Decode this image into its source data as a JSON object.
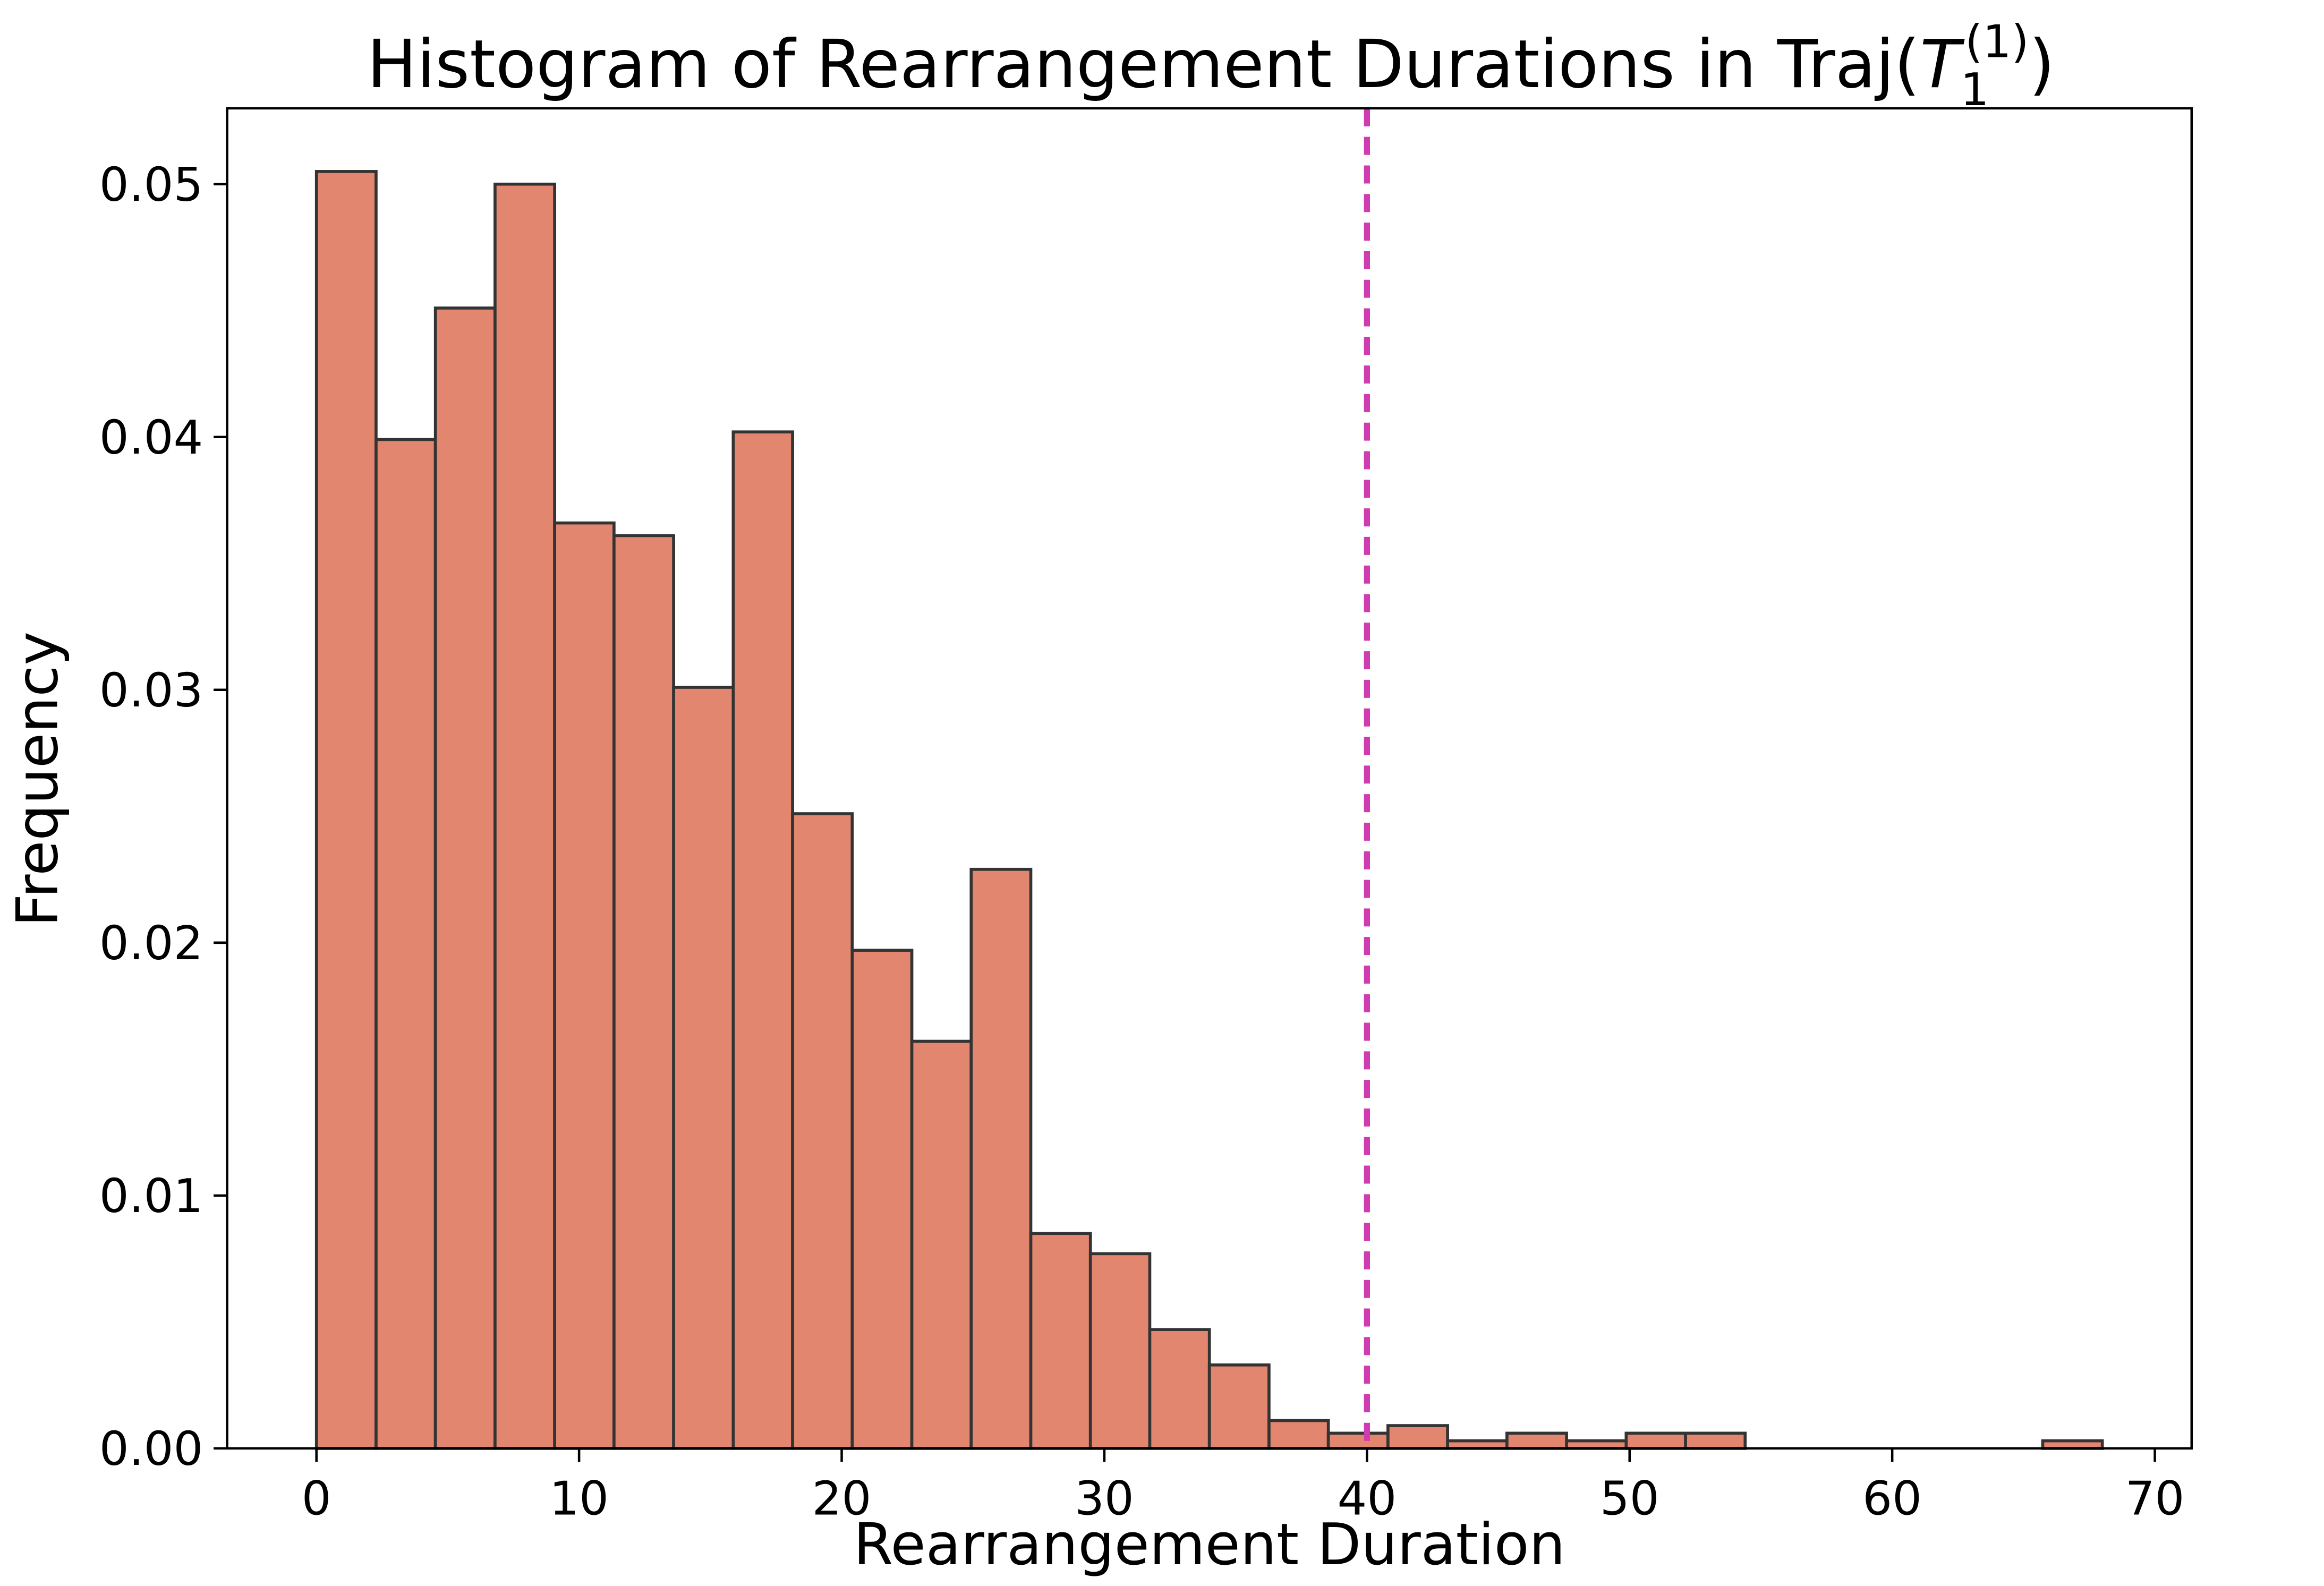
{
  "chart_data": {
    "type": "histogram",
    "title": {
      "prefix": "Histogram of Rearrangement Durations in Traj(",
      "base": "T",
      "subscript": "1",
      "superscript": "(1)",
      "suffix": ")"
    },
    "x_label": "Rearrangement Duration",
    "y_label": "Frequency",
    "bins": [
      0,
      2.27,
      4.53,
      6.8,
      9.07,
      11.33,
      13.6,
      15.87,
      18.13,
      20.4,
      22.67,
      24.93,
      27.2,
      29.47,
      31.73,
      34,
      36.27,
      38.53,
      40.8,
      43.07,
      45.33,
      47.6,
      49.87,
      52.13,
      54.4,
      56.67,
      58.93,
      61.2,
      63.47,
      65.73,
      68
    ],
    "values": [
      0.0505,
      0.0399,
      0.0451,
      0.05,
      0.0366,
      0.0361,
      0.0301,
      0.0402,
      0.0251,
      0.0197,
      0.0161,
      0.0229,
      0.0085,
      0.0077,
      0.0047,
      0.0033,
      0.0011,
      0.0006,
      0.0009,
      0.0003,
      0.0006,
      0.0003,
      0.0006,
      0.0006,
      0,
      0,
      0,
      0,
      0,
      0.0003
    ],
    "color": "#e2866f",
    "edgecolor": "#333333",
    "xlim": [
      -3.4,
      71.4
    ],
    "ylim": [
      0,
      0.053
    ],
    "xticks": [
      0,
      10,
      20,
      30,
      40,
      50,
      60,
      70
    ],
    "yticks": [
      {
        "value": 0,
        "label": "0.00"
      },
      {
        "value": 0.01,
        "label": "0.01"
      },
      {
        "value": 0.02,
        "label": "0.02"
      },
      {
        "value": 0.03,
        "label": "0.03"
      },
      {
        "value": 0.04,
        "label": "0.04"
      },
      {
        "value": 0.05,
        "label": "0.05"
      }
    ],
    "vline": {
      "x": 40,
      "color": "#d13bb0",
      "dashed": true
    }
  }
}
